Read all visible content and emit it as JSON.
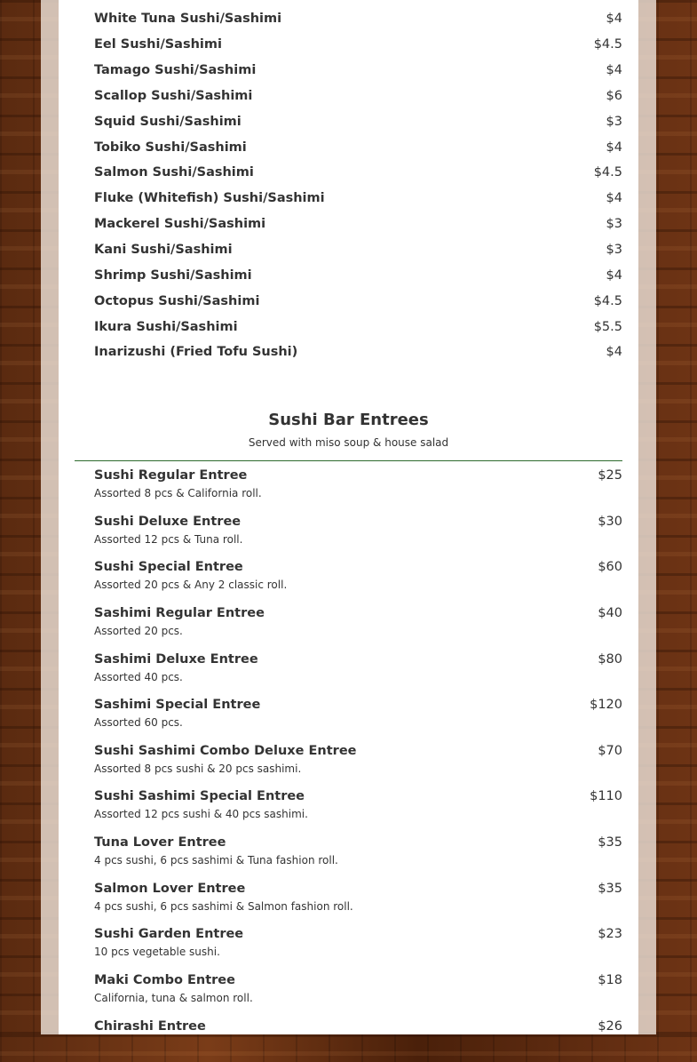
{
  "sushi_sashimi": [
    {
      "name": "White Tuna Sushi/Sashimi",
      "price": "$4"
    },
    {
      "name": "Eel Sushi/Sashimi",
      "price": "$4.5"
    },
    {
      "name": "Tamago Sushi/Sashimi",
      "price": "$4"
    },
    {
      "name": "Scallop Sushi/Sashimi",
      "price": "$6"
    },
    {
      "name": "Squid Sushi/Sashimi",
      "price": "$3"
    },
    {
      "name": "Tobiko Sushi/Sashimi",
      "price": "$4"
    },
    {
      "name": "Salmon Sushi/Sashimi",
      "price": "$4.5"
    },
    {
      "name": "Fluke (Whitefish) Sushi/Sashimi",
      "price": "$4"
    },
    {
      "name": "Mackerel Sushi/Sashimi",
      "price": "$3"
    },
    {
      "name": "Kani Sushi/Sashimi",
      "price": "$3"
    },
    {
      "name": "Shrimp Sushi/Sashimi",
      "price": "$4"
    },
    {
      "name": "Octopus Sushi/Sashimi",
      "price": "$4.5"
    },
    {
      "name": "Ikura Sushi/Sashimi",
      "price": "$5.5"
    },
    {
      "name": "Inarizushi (Fried Tofu Sushi)",
      "price": "$4"
    }
  ],
  "entrees_section": {
    "title": "Sushi Bar Entrees",
    "subtitle": "Served with miso soup & house salad",
    "divider_color": "#2e6b2e"
  },
  "entrees": [
    {
      "name": "Sushi Regular Entree",
      "price": "$25",
      "desc": "Assorted 8 pcs & California roll."
    },
    {
      "name": "Sushi Deluxe Entree",
      "price": "$30",
      "desc": "Assorted 12 pcs & Tuna roll."
    },
    {
      "name": "Sushi Special Entree",
      "price": "$60",
      "desc": "Assorted 20 pcs & Any 2 classic roll."
    },
    {
      "name": "Sashimi Regular Entree",
      "price": "$40",
      "desc": "Assorted 20 pcs."
    },
    {
      "name": "Sashimi Deluxe Entree",
      "price": "$80",
      "desc": "Assorted 40 pcs."
    },
    {
      "name": "Sashimi Special Entree",
      "price": "$120",
      "desc": "Assorted 60 pcs."
    },
    {
      "name": "Sushi Sashimi Combo Deluxe Entree",
      "price": "$70",
      "desc": "Assorted 8 pcs sushi & 20 pcs sashimi."
    },
    {
      "name": "Sushi Sashimi Special Entree",
      "price": "$110",
      "desc": "Assorted 12 pcs sushi & 40 pcs sashimi."
    },
    {
      "name": "Tuna Lover Entree",
      "price": "$35",
      "desc": "4 pcs sushi, 6 pcs sashimi & Tuna fashion roll."
    },
    {
      "name": "Salmon Lover Entree",
      "price": "$35",
      "desc": "4 pcs sushi, 6 pcs sashimi & Salmon fashion roll."
    },
    {
      "name": "Sushi Garden Entree",
      "price": "$23",
      "desc": "10 pcs vegetable sushi."
    },
    {
      "name": "Maki Combo Entree",
      "price": "$18",
      "desc": "California, tuna & salmon roll."
    },
    {
      "name": "Chirashi Entree",
      "price": "$26",
      "desc": ""
    }
  ]
}
